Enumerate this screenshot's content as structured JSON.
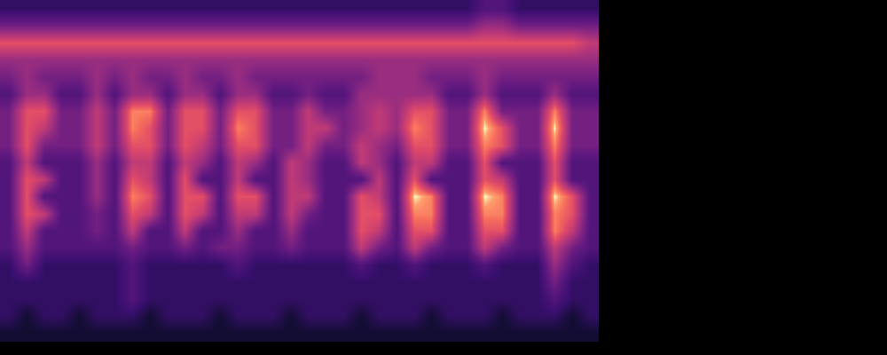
{
  "chart_data": {
    "type": "heatmap",
    "tick_labels": false,
    "zlim": [
      0,
      9
    ],
    "cells": [
      [
        2,
        2,
        2,
        2,
        2,
        2,
        2,
        2,
        2,
        2,
        2,
        2,
        2,
        2,
        2,
        2,
        2,
        2,
        2,
        2,
        2,
        2,
        2,
        2,
        2,
        2,
        2,
        3,
        3,
        2,
        2,
        2,
        2,
        2
      ],
      [
        4,
        4,
        4,
        4,
        4,
        4,
        4,
        4,
        4,
        4,
        4,
        4,
        4,
        4,
        4,
        4,
        4,
        4,
        4,
        4,
        4,
        4,
        4,
        4,
        4,
        4,
        4,
        5,
        5,
        4,
        4,
        4,
        4,
        4
      ],
      [
        7,
        7,
        7,
        7,
        7,
        7,
        7,
        7,
        7,
        7,
        7,
        7,
        7,
        7,
        7,
        7,
        7,
        7,
        7,
        7,
        7,
        7,
        7,
        7,
        7,
        7,
        7,
        7,
        7,
        7,
        7,
        7,
        7,
        6
      ],
      [
        5,
        5,
        5,
        5,
        5,
        5,
        5,
        5,
        5,
        5,
        5,
        5,
        5,
        5,
        5,
        5,
        5,
        5,
        5,
        5,
        5,
        5,
        5,
        5,
        5,
        5,
        5,
        5,
        5,
        5,
        5,
        5,
        5,
        5
      ],
      [
        4,
        5,
        4,
        4,
        4,
        5,
        4,
        5,
        4,
        4,
        5,
        4,
        4,
        5,
        4,
        4,
        4,
        4,
        4,
        4,
        4,
        5,
        5,
        5,
        4,
        4,
        4,
        5,
        4,
        4,
        4,
        4,
        4,
        4
      ],
      [
        3,
        5,
        5,
        3,
        3,
        5,
        3,
        5,
        5,
        3,
        5,
        5,
        3,
        5,
        5,
        3,
        3,
        4,
        3,
        3,
        5,
        5,
        5,
        5,
        5,
        3,
        3,
        5,
        3,
        3,
        3,
        5,
        3,
        3
      ],
      [
        4,
        7,
        7,
        4,
        4,
        6,
        4,
        8,
        8,
        4,
        7,
        7,
        4,
        7,
        7,
        4,
        4,
        6,
        4,
        4,
        5,
        6,
        5,
        7,
        7,
        4,
        4,
        8,
        4,
        4,
        4,
        8,
        4,
        4
      ],
      [
        4,
        7,
        6,
        4,
        4,
        6,
        4,
        8,
        7,
        4,
        7,
        7,
        4,
        8,
        7,
        4,
        4,
        6,
        6,
        4,
        5,
        6,
        5,
        8,
        7,
        4,
        4,
        9,
        7,
        4,
        4,
        9,
        4,
        4
      ],
      [
        4,
        7,
        4,
        4,
        4,
        6,
        4,
        7,
        7,
        4,
        7,
        6,
        4,
        7,
        7,
        4,
        4,
        6,
        4,
        4,
        6,
        5,
        4,
        7,
        7,
        4,
        4,
        8,
        7,
        4,
        4,
        8,
        4,
        4
      ],
      [
        3,
        6,
        3,
        3,
        3,
        5,
        3,
        6,
        6,
        3,
        6,
        5,
        3,
        6,
        5,
        3,
        6,
        5,
        3,
        3,
        6,
        5,
        3,
        6,
        6,
        3,
        3,
        7,
        3,
        3,
        3,
        7,
        3,
        3
      ],
      [
        3,
        7,
        6,
        3,
        3,
        5,
        3,
        7,
        6,
        3,
        7,
        3,
        3,
        6,
        3,
        3,
        6,
        5,
        3,
        3,
        3,
        6,
        3,
        7,
        3,
        3,
        3,
        7,
        6,
        3,
        3,
        7,
        3,
        3
      ],
      [
        3,
        7,
        3,
        3,
        3,
        5,
        3,
        8,
        7,
        3,
        7,
        7,
        3,
        7,
        7,
        3,
        6,
        6,
        3,
        3,
        7,
        6,
        3,
        9,
        8,
        3,
        3,
        9,
        8,
        3,
        3,
        9,
        7,
        3
      ],
      [
        3,
        7,
        6,
        3,
        3,
        4,
        3,
        7,
        6,
        3,
        7,
        6,
        3,
        6,
        6,
        3,
        6,
        4,
        3,
        3,
        7,
        7,
        3,
        8,
        8,
        3,
        3,
        8,
        8,
        3,
        3,
        8,
        7,
        3
      ],
      [
        3,
        6,
        3,
        3,
        3,
        4,
        3,
        6,
        3,
        3,
        6,
        3,
        3,
        5,
        3,
        3,
        5,
        3,
        3,
        3,
        7,
        6,
        3,
        7,
        7,
        3,
        3,
        7,
        7,
        3,
        3,
        8,
        6,
        3
      ],
      [
        3,
        5,
        3,
        3,
        3,
        3,
        3,
        4,
        3,
        3,
        4,
        3,
        4,
        4,
        3,
        3,
        4,
        3,
        3,
        3,
        6,
        4,
        3,
        6,
        4,
        3,
        3,
        6,
        4,
        3,
        3,
        6,
        4,
        3
      ],
      [
        2,
        4,
        2,
        2,
        2,
        2,
        2,
        3,
        2,
        2,
        2,
        2,
        2,
        3,
        2,
        2,
        2,
        2,
        2,
        2,
        3,
        2,
        2,
        3,
        2,
        2,
        2,
        3,
        2,
        2,
        2,
        5,
        3,
        2
      ],
      [
        2,
        2,
        2,
        2,
        2,
        2,
        2,
        3,
        2,
        2,
        2,
        2,
        2,
        2,
        2,
        2,
        2,
        2,
        2,
        2,
        2,
        2,
        2,
        2,
        2,
        2,
        2,
        2,
        2,
        2,
        2,
        4,
        2,
        2
      ],
      [
        2,
        2,
        2,
        2,
        2,
        2,
        2,
        3,
        2,
        2,
        2,
        2,
        2,
        2,
        2,
        2,
        2,
        2,
        2,
        2,
        2,
        2,
        2,
        2,
        2,
        2,
        2,
        2,
        2,
        2,
        2,
        3,
        2,
        2
      ],
      [
        2,
        1,
        2,
        2,
        1,
        2,
        2,
        2,
        1,
        2,
        2,
        2,
        1,
        2,
        2,
        2,
        1,
        2,
        2,
        2,
        1,
        2,
        2,
        2,
        1,
        2,
        2,
        2,
        1,
        2,
        2,
        2,
        1,
        2
      ],
      [
        1,
        1,
        1,
        1,
        1,
        1,
        1,
        1,
        1,
        1,
        1,
        1,
        1,
        1,
        1,
        1,
        1,
        1,
        1,
        1,
        1,
        1,
        1,
        1,
        1,
        1,
        1,
        1,
        1,
        1,
        1,
        1,
        1,
        1
      ]
    ]
  }
}
